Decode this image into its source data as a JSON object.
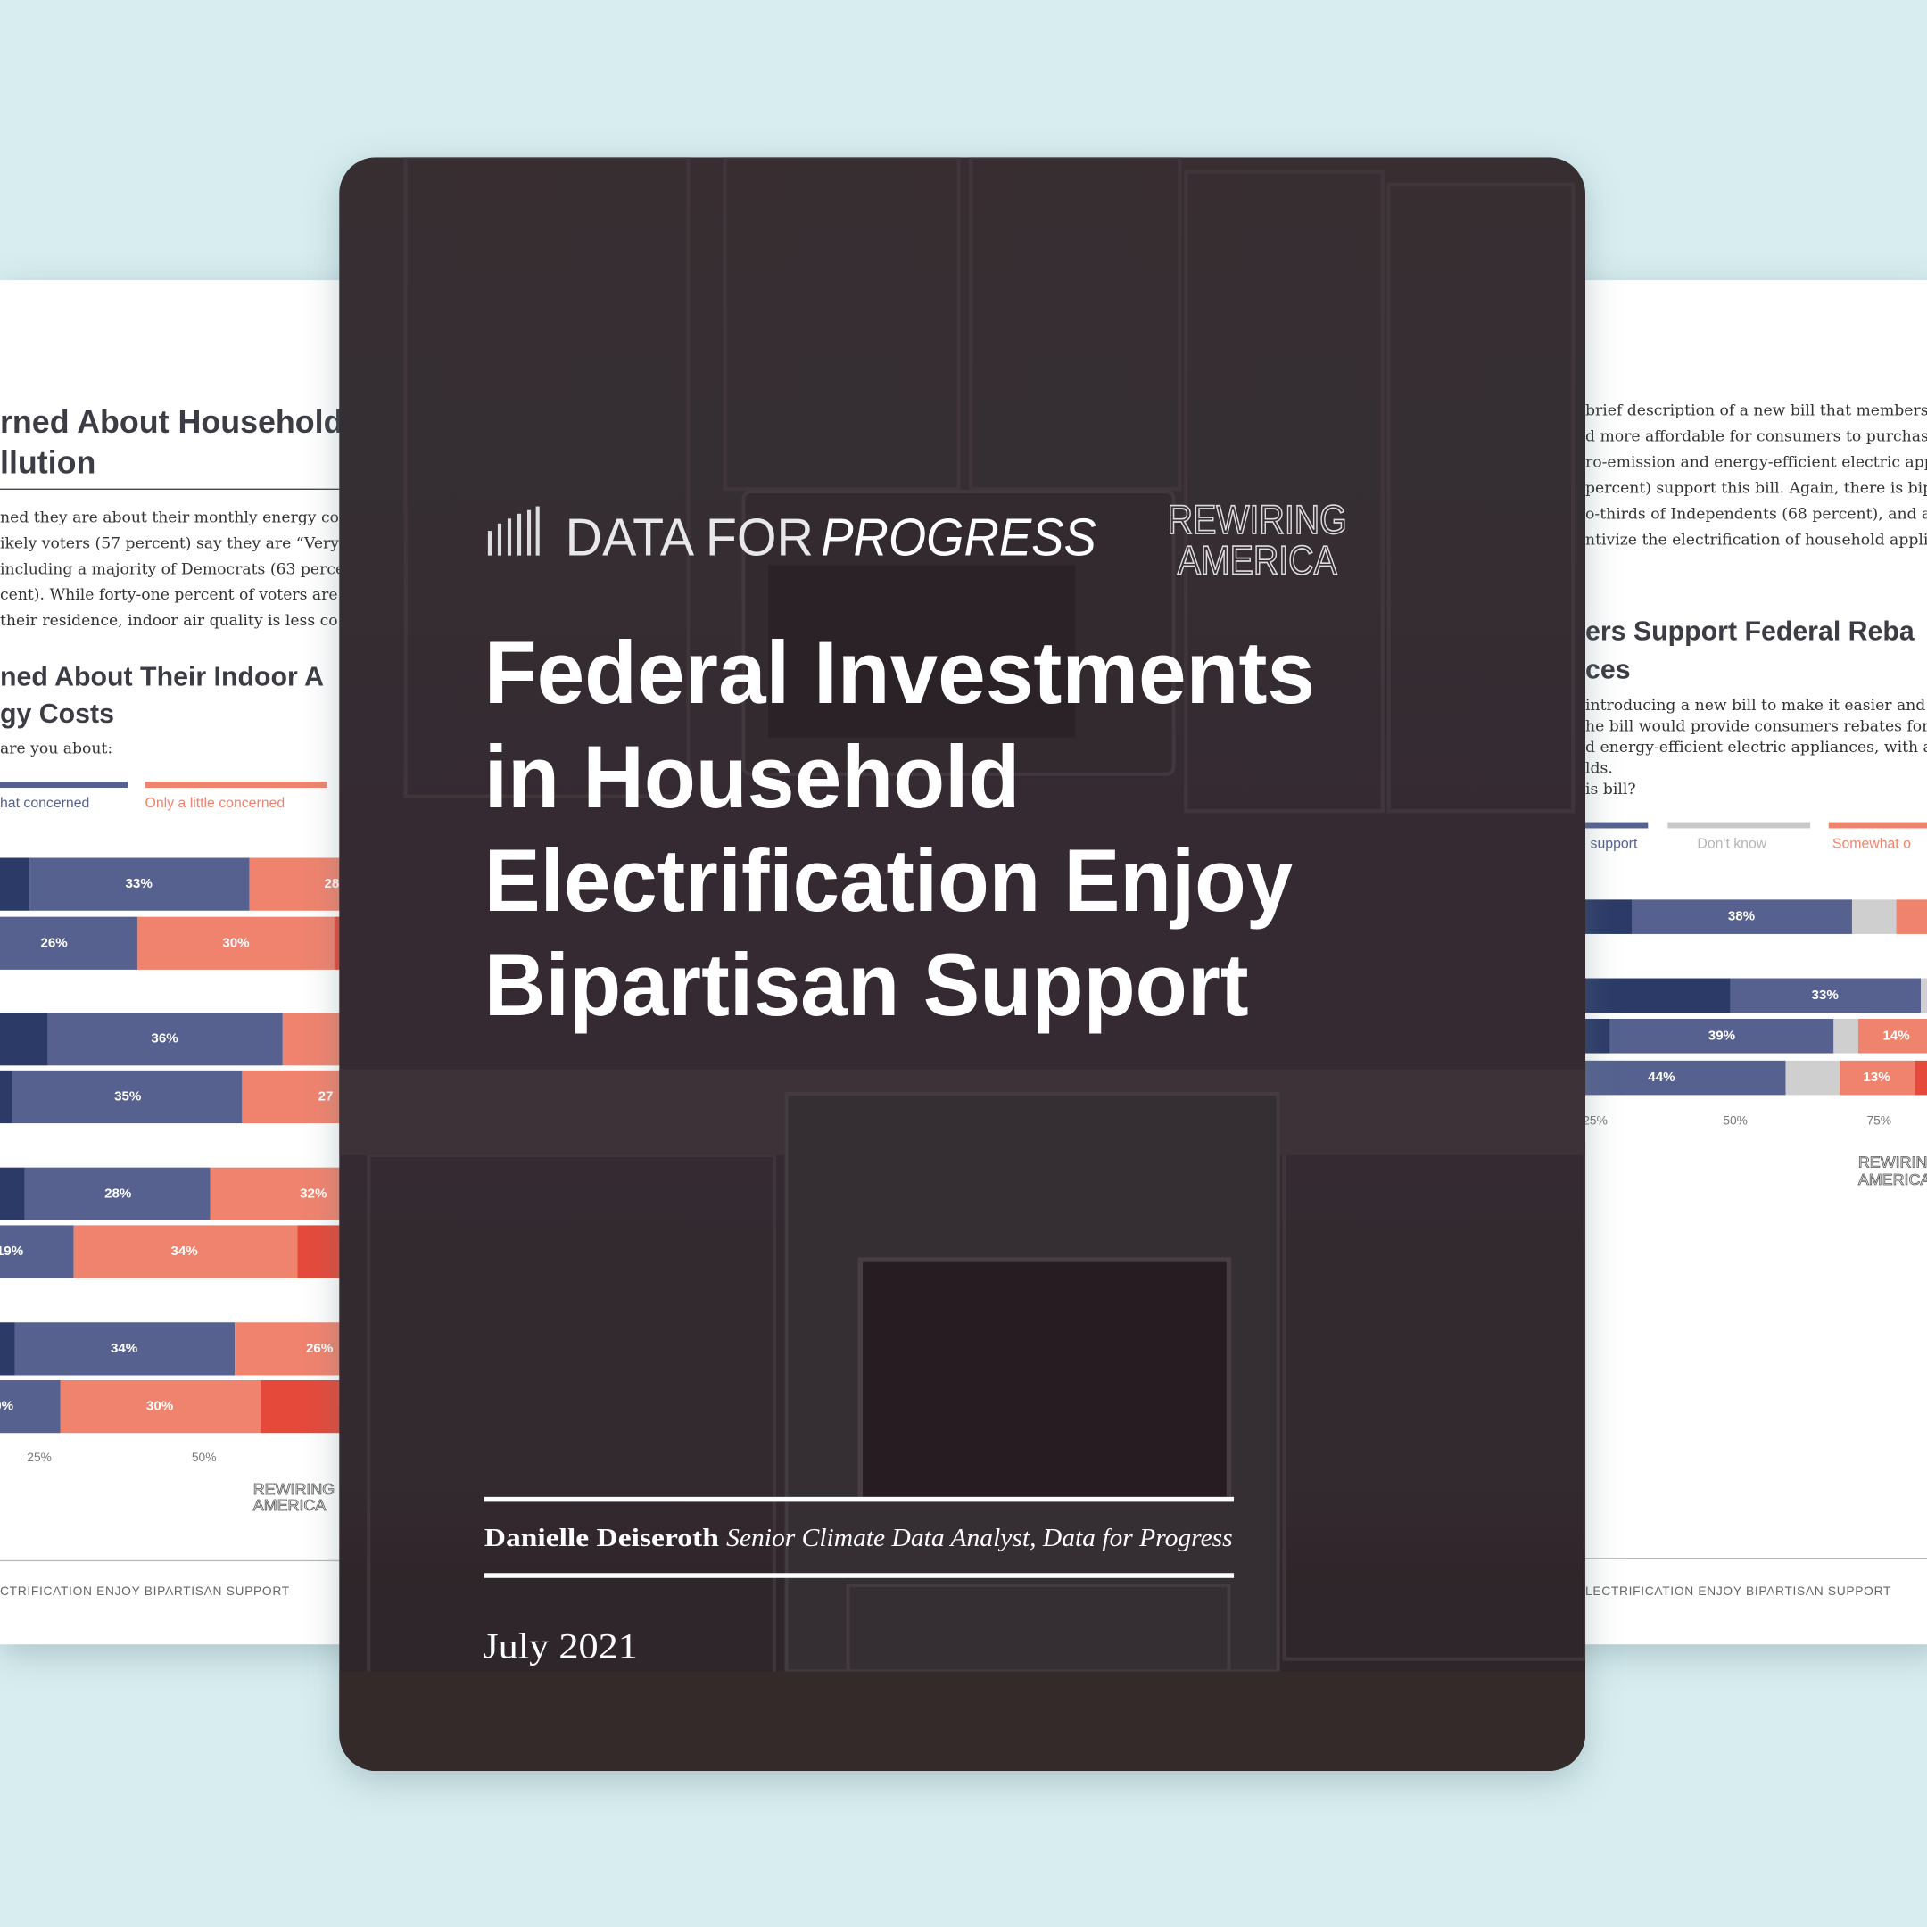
{
  "left_page": {
    "heading": [
      "rned About Household",
      "llution"
    ],
    "paragraph": [
      "ned they are about their monthly energy cos",
      "ikely voters (57 percent) say they are “Very”",
      "including a majority of Democrats (63 perce",
      "cent). While forty-one percent of voters are a",
      "their residence, indoor air quality is less co"
    ],
    "chart_title": [
      "ned About Their Indoor A",
      "gy Costs"
    ],
    "question": "are you about:",
    "legend": [
      "hat concerned",
      "Only a little concerned"
    ],
    "bar_labels": [
      [
        "33%",
        "28"
      ],
      [
        "26%",
        "30%"
      ],
      [
        "36%"
      ],
      [
        "35%",
        "27"
      ],
      [
        "28%",
        "32%"
      ],
      [
        "19%",
        "34%"
      ],
      [
        "34%",
        "26%"
      ],
      [
        "0%",
        "30%"
      ]
    ],
    "axis": [
      "25%",
      "50%"
    ],
    "logo": [
      "REWIRING",
      "AMERICA"
    ],
    "footer": "CTRIFICATION ENJOY BIPARTISAN SUPPORT"
  },
  "right_page": {
    "paragraph": [
      "brief description of a new bill that members",
      "d more affordable for consumers to purchase",
      "ro-emission and energy-efficient electric app",
      "percent) support this bill. Again, there is bipa",
      "o-thirds of Independents (68 percent), and a",
      "ntivize the electrification of household appli"
    ],
    "heading": [
      "ers Support Federal Reba",
      "ces"
    ],
    "question": [
      "introducing a new bill to make it easier and",
      "he bill would provide consumers rebates for",
      "d energy-efficient electric appliances, with a",
      "lds.",
      "is bill?"
    ],
    "legend": [
      "support",
      "Don't know",
      "Somewhat o"
    ],
    "bar_labels": [
      [
        "38%"
      ],
      [
        "33%"
      ],
      [
        "39%",
        "14%"
      ],
      [
        "44%",
        "13%"
      ]
    ],
    "axis": [
      "25%",
      "50%",
      "75%"
    ],
    "logo": [
      "REWIRING",
      "AMERICA"
    ],
    "footer": "LECTRIFICATION ENJOY BIPARTISAN SUPPORT"
  },
  "cover": {
    "logo_left": [
      "DATA FOR",
      "PROGRESS"
    ],
    "logo_right": [
      "REWIRING",
      "AMERICA"
    ],
    "title_lines": [
      "Federal Investments",
      "in Household",
      "Electrification Enjoy",
      "Bipartisan Support"
    ],
    "author_name": "Danielle Deiseroth",
    "author_role": "Senior Climate Data Analyst, Data for Progress",
    "date": "July 2021"
  }
}
